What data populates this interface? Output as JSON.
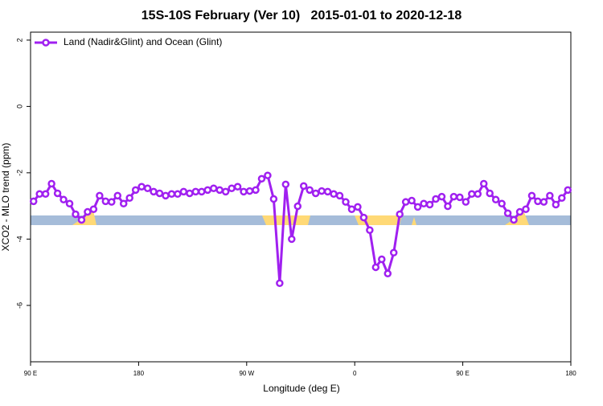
{
  "chart_data": {
    "type": "line",
    "title": "15S-10S February (Ver 10)   2015-01-01 to 2020-12-18",
    "xlabel": "Longitude (deg E)",
    "ylabel": "XCO2 - MLO trend (ppm)",
    "xlim": [
      90,
      540
    ],
    "xticks": [
      {
        "value": 90,
        "label": "90 E"
      },
      180,
      {
        "value": 270,
        "label": "90 W"
      },
      {
        "value": 360,
        "label": "0"
      },
      {
        "value": 450,
        "label": "90 E"
      },
      {
        "value": 540,
        "label": "180"
      }
    ],
    "ylim": [
      -7.7,
      2.24
    ],
    "yticks": [
      2,
      0,
      -2,
      -4,
      -6
    ],
    "grid": false,
    "legend": "top-left",
    "x": [
      92.5,
      97.5,
      102.5,
      107.5,
      112.5,
      117.5,
      122.5,
      127.5,
      132.5,
      137.5,
      142.5,
      147.5,
      152.5,
      157.5,
      162.5,
      167.5,
      172.5,
      177.5,
      182.5,
      187.5,
      192.5,
      197.5,
      202.5,
      207.5,
      212.5,
      217.5,
      222.5,
      227.5,
      232.5,
      237.5,
      242.5,
      247.5,
      252.5,
      257.5,
      262.5,
      267.5,
      272.5,
      277.5,
      282.5,
      287.5,
      292.5,
      297.5,
      302.5,
      307.5,
      312.5,
      317.5,
      322.5,
      327.5,
      332.5,
      337.5,
      342.5,
      347.5,
      352.5,
      357.5,
      362.5,
      367.5,
      372.5,
      377.5,
      382.5,
      387.5,
      392.5,
      397.5,
      402.5,
      407.5,
      412.5,
      417.5,
      422.5,
      427.5,
      432.5,
      437.5,
      442.5,
      447.5,
      452.5,
      457.5,
      462.5,
      467.5,
      472.5,
      477.5,
      482.5,
      487.5,
      492.5,
      497.5,
      502.5,
      507.5,
      512.5,
      517.5,
      522.5,
      527.5,
      532.5,
      537.5
    ],
    "series": [
      {
        "name": "Land (Nadir&Glint) and Ocean (Glint)",
        "color": "#a020f0",
        "values": [
          -2.86,
          -2.64,
          -2.64,
          -2.33,
          -2.62,
          -2.81,
          -2.93,
          -3.25,
          -3.42,
          -3.18,
          -3.1,
          -2.69,
          -2.86,
          -2.88,
          -2.69,
          -2.93,
          -2.76,
          -2.52,
          -2.42,
          -2.47,
          -2.57,
          -2.62,
          -2.69,
          -2.64,
          -2.64,
          -2.57,
          -2.62,
          -2.57,
          -2.57,
          -2.52,
          -2.47,
          -2.52,
          -2.57,
          -2.47,
          -2.42,
          -2.57,
          -2.55,
          -2.52,
          -2.18,
          -2.08,
          -2.79,
          -5.33,
          -2.35,
          -4.0,
          -3.01,
          -2.4,
          -2.52,
          -2.62,
          -2.55,
          -2.57,
          -2.64,
          -2.69,
          -2.88,
          -3.1,
          -3.03,
          -3.35,
          -3.73,
          -4.85,
          -4.61,
          -5.04,
          -4.41,
          -3.25,
          -2.88,
          -2.84,
          -3.03,
          -2.93,
          -2.96,
          -2.79,
          -2.72,
          -3.01,
          -2.72,
          -2.74,
          -2.88,
          -2.64,
          -2.64,
          -2.33,
          -2.62,
          -2.81,
          -2.93,
          -3.22,
          -3.42,
          -3.18,
          -3.1,
          -2.69,
          -2.86,
          -2.88,
          -2.69,
          -2.96,
          -2.76,
          -2.52
        ]
      }
    ]
  }
}
